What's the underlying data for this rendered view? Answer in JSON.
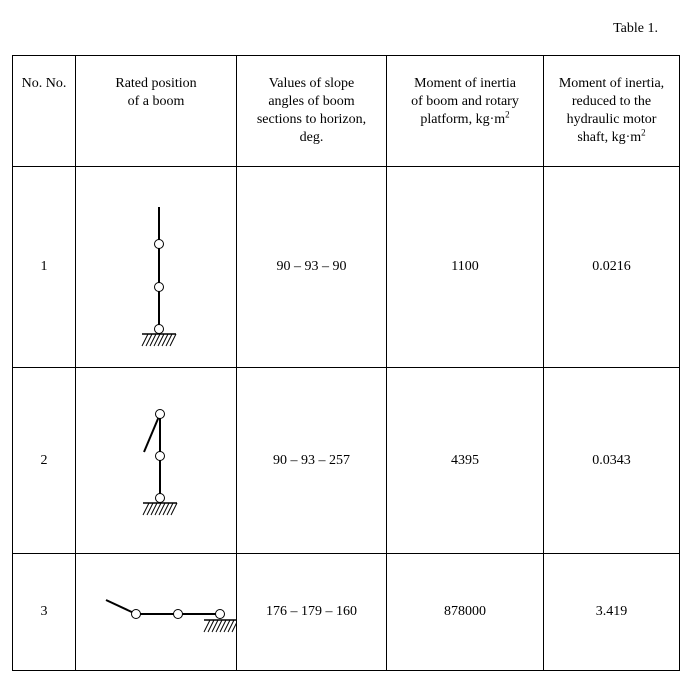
{
  "caption": "Table 1.",
  "headers": {
    "col1": "No. No.",
    "col2": [
      "Rated position",
      "of a boom"
    ],
    "col3": [
      "Values of slope",
      "angles of boom",
      "sections to horizon,",
      "deg."
    ],
    "col4": [
      "Moment of inertia",
      "of boom and rotary",
      "platform, kg·m"
    ],
    "col4_sup": "2",
    "col5": [
      "Moment of inertia,",
      "reduced to the",
      "hydraulic motor",
      "shaft, kg·m"
    ],
    "col5_sup": "2"
  },
  "rows": [
    {
      "no": "1",
      "position_icon": "vertical-boom-diagram",
      "angles": "90 – 93 – 90",
      "inertia_platform": "1100",
      "inertia_shaft": "0.0216"
    },
    {
      "no": "2",
      "position_icon": "folded-boom-diagram",
      "angles": "90 – 93 – 257",
      "inertia_platform": "4395",
      "inertia_shaft": "0.0343"
    },
    {
      "no": "3",
      "position_icon": "horizontal-boom-diagram",
      "angles": "176 – 179 – 160",
      "inertia_platform": "878000",
      "inertia_shaft": "3.419"
    }
  ]
}
